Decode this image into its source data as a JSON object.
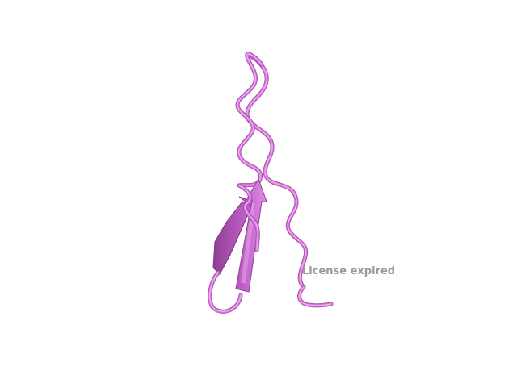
{
  "viewer": {
    "background_color": "#ffffff",
    "structure_color": "#d673dc",
    "structure_shadow_color": "#9a4aa2",
    "structure_highlight_color": "#f0b3f2",
    "representation": "cartoon",
    "watermark": "License expired"
  }
}
